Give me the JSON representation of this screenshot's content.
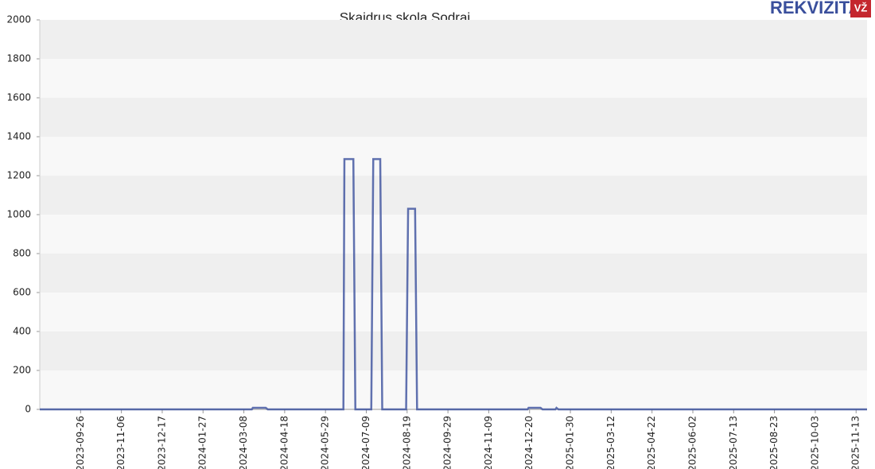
{
  "chart_data": {
    "type": "line",
    "title": "Skaidrus skola Sodrai",
    "logo": {
      "text": "REKVIZITAI",
      "badge": "VŽ"
    },
    "x": [
      "2023-08-16",
      "2024-03-16",
      "2024-03-17",
      "2024-03-30",
      "2024-04-01",
      "2024-06-16",
      "2024-06-17",
      "2024-06-26",
      "2024-06-28",
      "2024-07-14",
      "2024-07-16",
      "2024-07-23",
      "2024-07-25",
      "2024-08-18",
      "2024-08-20",
      "2024-08-27",
      "2024-08-29",
      "2024-12-18",
      "2024-12-19",
      "2024-12-31",
      "2025-01-02",
      "2025-01-15",
      "2025-01-16",
      "2025-01-18",
      "2025-11-24"
    ],
    "values": [
      0,
      0,
      8,
      8,
      0,
      0,
      1285,
      1285,
      0,
      0,
      1285,
      1285,
      0,
      0,
      1030,
      1030,
      0,
      0,
      8,
      8,
      0,
      0,
      8,
      0,
      0
    ],
    "color": "#3a4f9c",
    "xlim": [
      "2023-08-16",
      "2025-11-24"
    ],
    "xticks": [
      "2023-09-26",
      "2023-11-06",
      "2023-12-17",
      "2024-01-27",
      "2024-03-08",
      "2024-04-18",
      "2024-05-29",
      "2024-07-09",
      "2024-08-19",
      "2024-09-29",
      "2024-11-09",
      "2024-12-20",
      "2025-01-30",
      "2025-03-12",
      "2025-04-22",
      "2025-06-02",
      "2025-07-13",
      "2025-08-23",
      "2025-10-03",
      "2025-11-13"
    ],
    "ylim": [
      0,
      2000
    ],
    "yticks": [
      0,
      200,
      400,
      600,
      800,
      1000,
      1200,
      1400,
      1600,
      1800,
      2000
    ],
    "grid": true
  }
}
